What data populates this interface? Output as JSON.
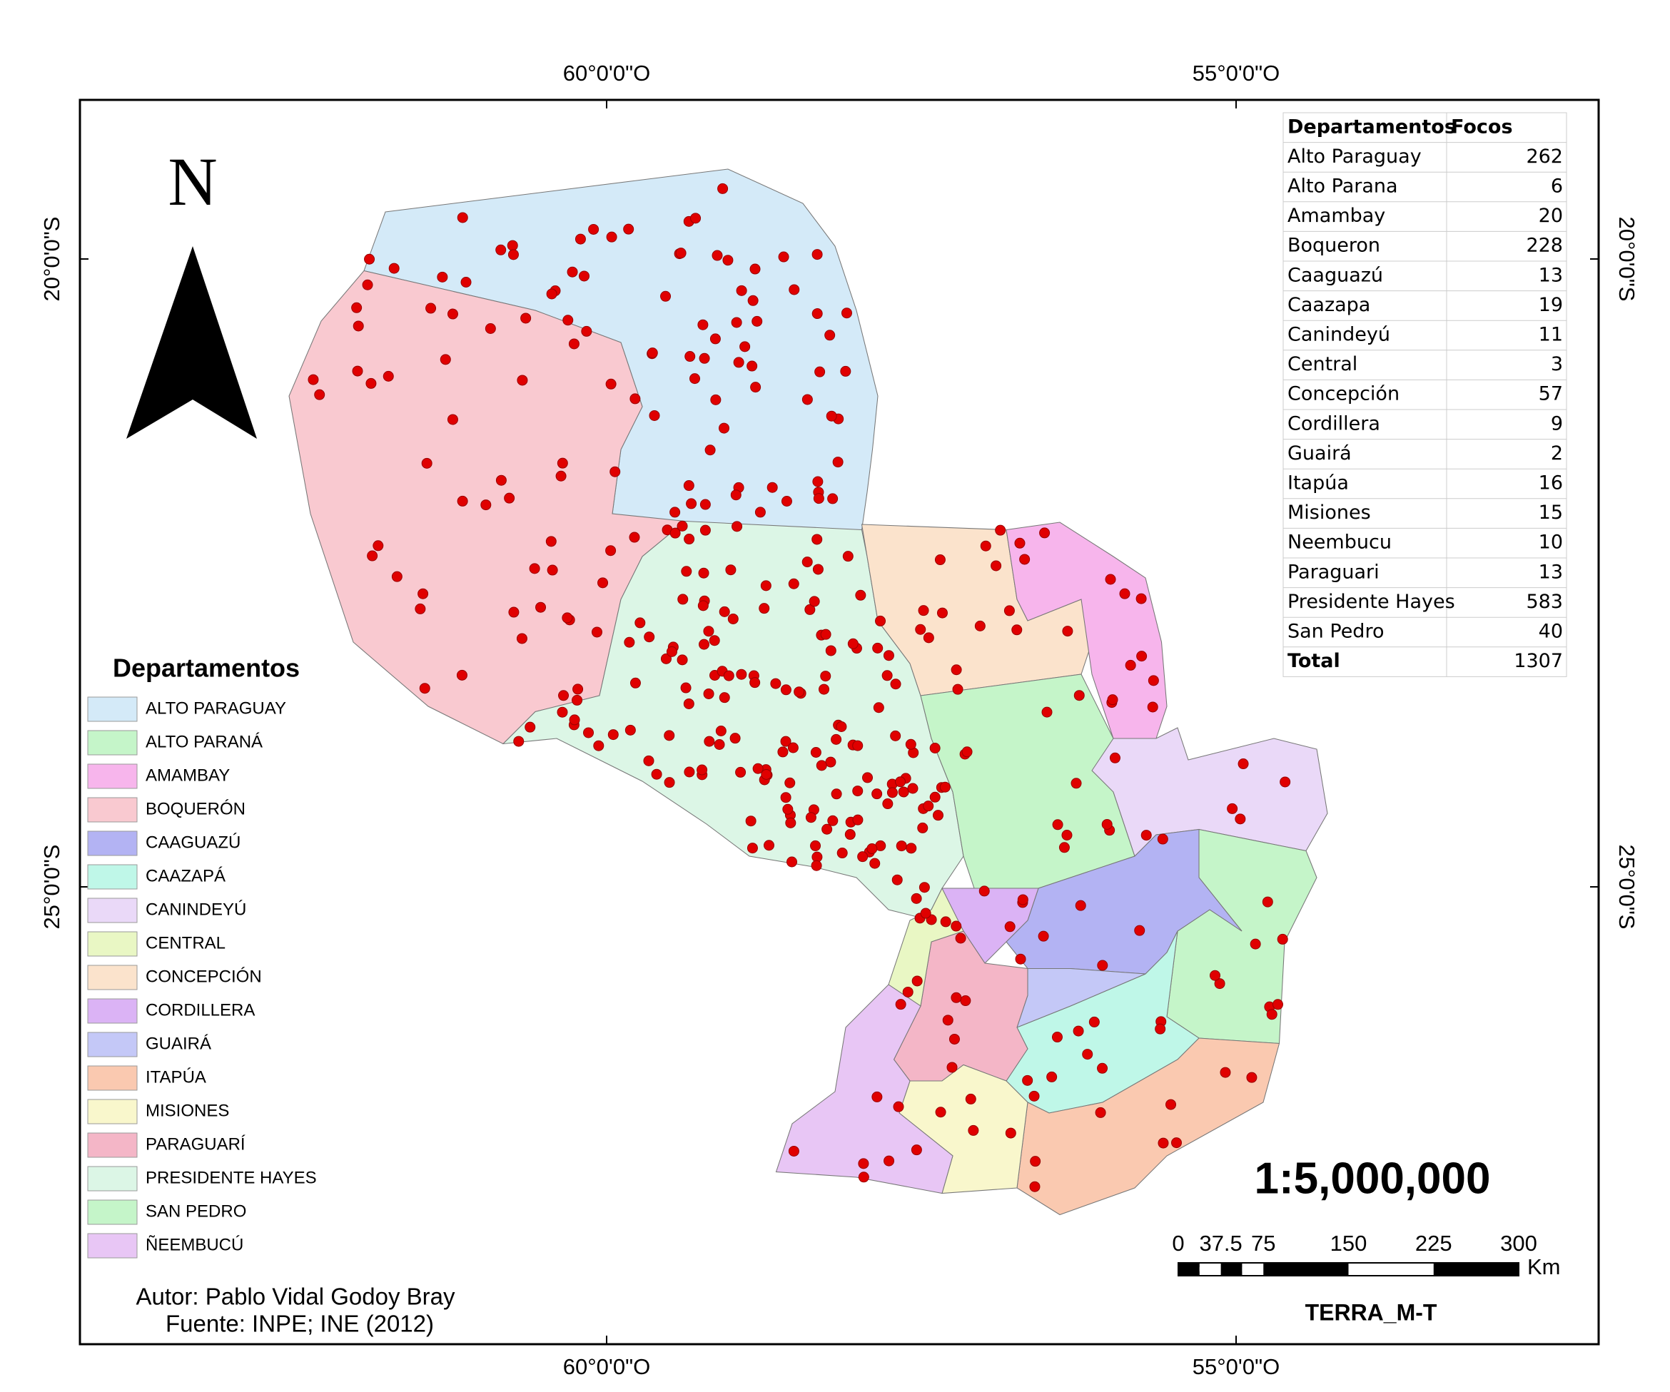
{
  "grid_labels": {
    "top": [
      "60°0'0\"O",
      "55°0'0\"O"
    ],
    "bottom": [
      "60°0'0\"O",
      "55°0'0\"O"
    ],
    "left": [
      "20°0'0\"S",
      "25°0'0\"S"
    ],
    "right": [
      "20°0'0\"S",
      "25°0'0\"S"
    ]
  },
  "north": "N",
  "table": {
    "header": [
      "Departamentos",
      "Focos"
    ],
    "rows": [
      [
        "Alto Paraguay",
        "262"
      ],
      [
        "Alto Parana",
        "6"
      ],
      [
        "Amambay",
        "20"
      ],
      [
        "Boqueron",
        "228"
      ],
      [
        "Caaguazú",
        "13"
      ],
      [
        "Caazapa",
        "19"
      ],
      [
        "Canindeyú",
        "11"
      ],
      [
        "Central",
        "3"
      ],
      [
        "Concepción",
        "57"
      ],
      [
        "Cordillera",
        "9"
      ],
      [
        "Guairá",
        "2"
      ],
      [
        "Itapúa",
        "16"
      ],
      [
        "Misiones",
        "15"
      ],
      [
        "Neembucu",
        "10"
      ],
      [
        "Paraguari",
        "13"
      ],
      [
        "Presidente Hayes",
        "583"
      ],
      [
        "San Pedro",
        "40"
      ]
    ],
    "total": [
      "Total",
      "1307"
    ]
  },
  "legend": {
    "title": "Departamentos",
    "items": [
      {
        "label": "ALTO PARAGUAY",
        "color": "#d4eaf8"
      },
      {
        "label": "ALTO PARANÁ",
        "color": "#c5f5c9"
      },
      {
        "label": "AMAMBAY",
        "color": "#f7b5ec"
      },
      {
        "label": "BOQUERÓN",
        "color": "#f9c9d0"
      },
      {
        "label": "CAAGUAZÚ",
        "color": "#b3b3f3"
      },
      {
        "label": "CAAZAPÁ",
        "color": "#bff7e8"
      },
      {
        "label": "CANINDEYÚ",
        "color": "#ead9f8"
      },
      {
        "label": "CENTRAL",
        "color": "#e9f7c4"
      },
      {
        "label": "CONCEPCIÓN",
        "color": "#fbe3cc"
      },
      {
        "label": "CORDILLERA",
        "color": "#dbb3f5"
      },
      {
        "label": "GUAIRÁ",
        "color": "#c4c8f7"
      },
      {
        "label": "ITAPÚA",
        "color": "#fac9b0"
      },
      {
        "label": "MISIONES",
        "color": "#f9f7cc"
      },
      {
        "label": "PARAGUARÍ",
        "color": "#f4b6c7"
      },
      {
        "label": "PRESIDENTE HAYES",
        "color": "#dcf6e6"
      },
      {
        "label": "SAN PEDRO",
        "color": "#c5f5c9"
      },
      {
        "label": "ÑEEMBUCÚ",
        "color": "#e8c6f5"
      }
    ]
  },
  "scale": "1:5,000,000",
  "scale_bar": {
    "ticks": [
      0,
      37.5,
      75,
      150,
      225,
      300
    ],
    "unit": "Km"
  },
  "sensor": "TERRA_M-T",
  "credits": [
    "Autor: Pablo Vidal Godoy Bray",
    "Fuente: INPE; INE (2012)"
  ]
}
